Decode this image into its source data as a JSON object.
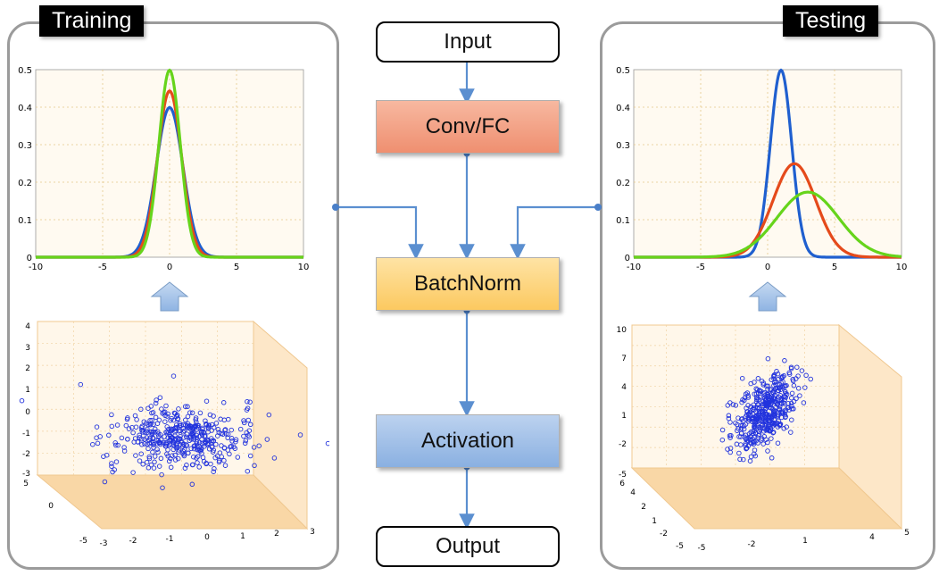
{
  "training": {
    "label": "Training",
    "curve_chart": {
      "type": "line",
      "x_ticks": [
        "-10",
        "-5",
        "0",
        "5",
        "10"
      ],
      "y_ticks": [
        "0",
        "0.1",
        "0.2",
        "0.3",
        "0.4",
        "0.5"
      ],
      "xlim": [
        -10,
        10
      ],
      "ylim": [
        0,
        0.5
      ],
      "series": [
        {
          "name": "blue",
          "color": "#1f5fcf",
          "mu": 0,
          "sigma": 1.0
        },
        {
          "name": "red",
          "color": "#e54a1b",
          "mu": 0,
          "sigma": 0.9
        },
        {
          "name": "green",
          "color": "#66d41b",
          "mu": 0,
          "sigma": 0.8
        }
      ]
    },
    "scatter_chart": {
      "type": "scatter",
      "z_ticks": [
        "4",
        "3",
        "2",
        "1",
        "0",
        "-1",
        "-2",
        "-3"
      ],
      "y_ticks": [
        "5",
        "0",
        "-5"
      ],
      "x_ticks": [
        "-3",
        "-2",
        "-1",
        "0",
        "1",
        "2",
        "3"
      ],
      "color": "#2233dd"
    }
  },
  "testing": {
    "label": "Testing",
    "curve_chart": {
      "type": "line",
      "x_ticks": [
        "-10",
        "-5",
        "0",
        "5",
        "10"
      ],
      "y_ticks": [
        "0",
        "0.1",
        "0.2",
        "0.3",
        "0.4",
        "0.5"
      ],
      "xlim": [
        -10,
        10
      ],
      "ylim": [
        0,
        0.5
      ],
      "series": [
        {
          "name": "blue",
          "color": "#1f5fcf",
          "mu": 1,
          "sigma": 0.8
        },
        {
          "name": "red",
          "color": "#e54a1b",
          "mu": 2,
          "sigma": 1.6
        },
        {
          "name": "green",
          "color": "#66d41b",
          "mu": 3,
          "sigma": 2.3
        }
      ]
    },
    "scatter_chart": {
      "type": "scatter",
      "z_ticks": [
        "10",
        "7",
        "4",
        "1",
        "-2",
        "-5"
      ],
      "y_ticks": [
        "6",
        "4",
        "2",
        "1",
        "-2",
        "-5"
      ],
      "x_ticks": [
        "-5",
        "-2",
        "1",
        "4",
        "5"
      ],
      "color": "#2233dd"
    }
  },
  "flow": {
    "input": "Input",
    "conv": "Conv/FC",
    "batchnorm": "BatchNorm",
    "activation": "Activation",
    "output": "Output"
  },
  "colors": {
    "conv": "#f29c80",
    "batchnorm": "#fdd886",
    "activation": "#8fb4e3",
    "arrow": "#5b8fd0",
    "plot_bg": "#fffaf1",
    "grid": "#e0b060"
  }
}
